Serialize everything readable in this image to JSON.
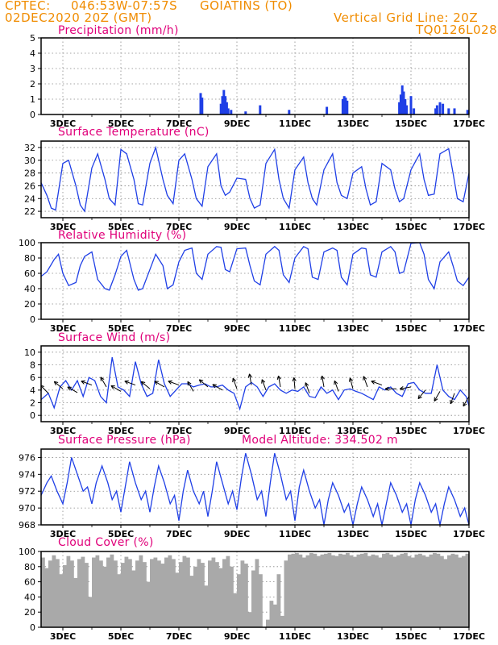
{
  "header": {
    "source": "CPTEC:",
    "coords": "046:53W-07:57S",
    "location": "GOIATINS (TO)",
    "datetime": "02DEC2020 20Z (GMT)",
    "grid_note": "Vertical Grid Line: 20Z",
    "model": "TQ0126L028"
  },
  "colors": {
    "header": "#f08c00",
    "title": "#e0007a",
    "line": "#1f3fe6",
    "cloud": "#a9a9a9"
  },
  "x_ticks": [
    "3DEC",
    "5DEC",
    "7DEC",
    "9DEC",
    "11DEC",
    "13DEC",
    "15DEC",
    "17DEC"
  ],
  "panels": {
    "precip": {
      "title": "Precipitation (mm/h)"
    },
    "temp": {
      "title": "Surface Temperature (nC)"
    },
    "rh": {
      "title": "Relative Humidity (%)"
    },
    "wind": {
      "title": "Surface Wind (m/s)"
    },
    "pressure": {
      "title": "Surface Pressure (hPa)",
      "extra": "Model Altitude: 334.502 m"
    },
    "cloud": {
      "title": "Cloud Cover (%)"
    }
  },
  "chart_data": [
    {
      "id": "precip",
      "type": "bar",
      "title": "Precipitation (mm/h)",
      "xrange": [
        2.25,
        17.0
      ],
      "ylim": [
        0,
        5
      ],
      "yticks": [
        0,
        1,
        2,
        3,
        4,
        5
      ],
      "bars": [
        [
          7.75,
          1.4
        ],
        [
          7.8,
          1.1
        ],
        [
          8.45,
          0.7
        ],
        [
          8.5,
          1.2
        ],
        [
          8.55,
          1.6
        ],
        [
          8.6,
          1.2
        ],
        [
          8.65,
          0.8
        ],
        [
          8.7,
          0.4
        ],
        [
          8.8,
          0.3
        ],
        [
          9.3,
          0.2
        ],
        [
          9.8,
          0.6
        ],
        [
          10.8,
          0.3
        ],
        [
          12.1,
          0.5
        ],
        [
          12.65,
          1.0
        ],
        [
          12.7,
          1.2
        ],
        [
          12.75,
          1.1
        ],
        [
          12.8,
          0.9
        ],
        [
          14.6,
          0.8
        ],
        [
          14.65,
          1.3
        ],
        [
          14.7,
          1.9
        ],
        [
          14.75,
          1.5
        ],
        [
          14.8,
          1.0
        ],
        [
          14.85,
          0.6
        ],
        [
          15.0,
          1.2
        ],
        [
          15.1,
          0.4
        ],
        [
          15.85,
          0.4
        ],
        [
          15.9,
          0.6
        ],
        [
          16.0,
          0.8
        ],
        [
          16.1,
          0.7
        ],
        [
          16.3,
          0.4
        ],
        [
          16.5,
          0.4
        ],
        [
          16.95,
          0.3
        ]
      ]
    },
    {
      "id": "temp",
      "type": "line",
      "title": "Surface Temperature (nC)",
      "xrange": [
        2.25,
        17.0
      ],
      "ylim": [
        21,
        33
      ],
      "yticks": [
        22,
        24,
        26,
        28,
        30,
        32
      ],
      "x": [
        2.25,
        2.45,
        2.6,
        2.75,
        3.0,
        3.2,
        3.45,
        3.6,
        3.75,
        4.0,
        4.2,
        4.45,
        4.6,
        4.8,
        5.0,
        5.2,
        5.45,
        5.6,
        5.75,
        6.0,
        6.2,
        6.45,
        6.6,
        6.8,
        7.0,
        7.2,
        7.45,
        7.6,
        7.8,
        8.0,
        8.3,
        8.45,
        8.6,
        8.75,
        9.0,
        9.3,
        9.45,
        9.6,
        9.8,
        10.0,
        10.3,
        10.45,
        10.6,
        10.8,
        11.0,
        11.3,
        11.45,
        11.6,
        11.75,
        12.0,
        12.3,
        12.45,
        12.6,
        12.8,
        13.0,
        13.3,
        13.45,
        13.6,
        13.8,
        14.0,
        14.3,
        14.45,
        14.6,
        14.75,
        15.0,
        15.3,
        15.45,
        15.6,
        15.8,
        16.0,
        16.3,
        16.45,
        16.6,
        16.8,
        17.0
      ],
      "y": [
        26.5,
        24.5,
        22.5,
        22.2,
        29.5,
        30,
        26,
        23,
        22,
        28.8,
        31,
        27,
        24,
        23,
        31.7,
        31,
        27,
        23.2,
        23,
        29.5,
        32,
        27,
        24.5,
        23.2,
        30,
        31,
        27,
        24,
        22.8,
        29,
        31,
        26,
        24.5,
        25,
        27.2,
        27,
        24,
        22.5,
        23,
        29.5,
        31.7,
        27,
        24,
        22.5,
        28.5,
        30.5,
        26.5,
        24,
        23,
        28.5,
        31,
        26.5,
        24.5,
        24,
        28,
        29,
        25.5,
        23,
        23.5,
        29.5,
        28.5,
        25.5,
        23.5,
        24,
        28.5,
        31,
        27,
        24.5,
        24.7,
        31,
        31.8,
        28,
        24,
        23.5,
        28
      ]
    },
    {
      "id": "rh",
      "type": "line",
      "title": "Relative Humidity (%)",
      "xrange": [
        2.25,
        17.0
      ],
      "ylim": [
        0,
        100
      ],
      "yticks": [
        0,
        20,
        40,
        60,
        80,
        100
      ],
      "x": [
        2.25,
        2.45,
        2.7,
        2.85,
        3.0,
        3.2,
        3.45,
        3.6,
        3.75,
        4.0,
        4.2,
        4.45,
        4.6,
        4.8,
        5.0,
        5.2,
        5.45,
        5.6,
        5.75,
        6.0,
        6.2,
        6.45,
        6.6,
        6.8,
        7.0,
        7.2,
        7.45,
        7.6,
        7.8,
        8.0,
        8.3,
        8.45,
        8.6,
        8.75,
        9.0,
        9.3,
        9.45,
        9.6,
        9.8,
        10.0,
        10.3,
        10.45,
        10.6,
        10.8,
        11.0,
        11.3,
        11.45,
        11.6,
        11.8,
        12.0,
        12.3,
        12.45,
        12.6,
        12.8,
        13.0,
        13.3,
        13.45,
        13.6,
        13.8,
        14.0,
        14.3,
        14.45,
        14.6,
        14.75,
        15.0,
        15.3,
        15.45,
        15.6,
        15.8,
        16.0,
        16.3,
        16.45,
        16.6,
        16.8,
        17.0
      ],
      "y": [
        56,
        62,
        78,
        85,
        60,
        44,
        48,
        70,
        82,
        88,
        52,
        40,
        38,
        58,
        82,
        90,
        52,
        38,
        40,
        65,
        85,
        70,
        40,
        45,
        75,
        90,
        93,
        60,
        52,
        85,
        95,
        94,
        65,
        62,
        92,
        93,
        70,
        50,
        45,
        85,
        95,
        90,
        58,
        48,
        80,
        95,
        92,
        55,
        52,
        88,
        93,
        90,
        55,
        45,
        85,
        93,
        92,
        58,
        55,
        88,
        95,
        88,
        60,
        62,
        99,
        100,
        85,
        52,
        40,
        75,
        88,
        70,
        50,
        44,
        55
      ]
    },
    {
      "id": "wind",
      "type": "line",
      "title": "Surface Wind (m/s)",
      "xrange": [
        2.25,
        17.0
      ],
      "ylim": [
        -1,
        11
      ],
      "yticks": [
        0,
        2,
        4,
        6,
        8,
        10
      ],
      "x": [
        2.25,
        2.5,
        2.7,
        2.9,
        3.1,
        3.3,
        3.5,
        3.7,
        3.9,
        4.1,
        4.3,
        4.5,
        4.7,
        4.9,
        5.1,
        5.3,
        5.5,
        5.7,
        5.9,
        6.1,
        6.3,
        6.5,
        6.7,
        6.9,
        7.1,
        7.3,
        7.5,
        7.7,
        7.9,
        8.1,
        8.3,
        8.5,
        8.7,
        8.9,
        9.1,
        9.3,
        9.5,
        9.7,
        9.9,
        10.1,
        10.3,
        10.5,
        10.7,
        10.9,
        11.1,
        11.3,
        11.5,
        11.7,
        11.9,
        12.1,
        12.3,
        12.5,
        12.7,
        12.9,
        13.1,
        13.3,
        13.5,
        13.7,
        13.9,
        14.1,
        14.3,
        14.5,
        14.7,
        14.9,
        15.1,
        15.3,
        15.5,
        15.7,
        15.9,
        16.1,
        16.3,
        16.5,
        16.7,
        16.9,
        17.0
      ],
      "y": [
        2.5,
        3.5,
        1.2,
        4.5,
        5.5,
        4,
        5.5,
        3,
        6,
        5.5,
        3,
        2,
        9.2,
        4.5,
        4,
        3,
        8.5,
        5,
        3,
        3.5,
        8.8,
        5,
        3,
        4,
        5,
        5,
        4.5,
        4.8,
        5,
        4.5,
        4.5,
        4.8,
        4,
        3.5,
        1,
        4.5,
        5.2,
        4.5,
        3,
        4.5,
        5,
        4,
        3.5,
        4,
        3.8,
        4.5,
        3,
        2.8,
        4.5,
        3.5,
        4,
        2.5,
        4,
        4.2,
        3.8,
        3.5,
        3,
        2.5,
        4.5,
        4,
        4.5,
        3.5,
        3,
        5,
        5.2,
        4,
        3.5,
        3.5,
        8,
        4,
        3,
        2.5,
        4,
        3,
        1.5
      ],
      "arrows": [
        [
          2.5,
          3.5,
          225
        ],
        [
          3.0,
          4.2,
          230
        ],
        [
          3.5,
          3.6,
          240
        ],
        [
          4.0,
          4.8,
          250
        ],
        [
          4.5,
          4.5,
          210
        ],
        [
          5.0,
          3.8,
          240
        ],
        [
          5.5,
          4.8,
          250
        ],
        [
          6.0,
          4.2,
          230
        ],
        [
          6.5,
          4.5,
          240
        ],
        [
          7.0,
          4.8,
          250
        ],
        [
          7.5,
          3.8,
          210
        ],
        [
          8.0,
          4.5,
          230
        ],
        [
          8.5,
          4.0,
          240
        ],
        [
          9.0,
          4.2,
          200
        ],
        [
          9.5,
          4.8,
          190
        ],
        [
          10.0,
          4.0,
          200
        ],
        [
          10.5,
          4.5,
          190
        ],
        [
          11.0,
          4.2,
          185
        ],
        [
          11.5,
          3.5,
          200
        ],
        [
          12.0,
          4.5,
          190
        ],
        [
          12.5,
          3.8,
          200
        ],
        [
          13.0,
          4.2,
          195
        ],
        [
          13.5,
          4.5,
          200
        ],
        [
          14.0,
          4.8,
          250
        ],
        [
          14.5,
          4.2,
          270
        ],
        [
          15.0,
          4.5,
          280
        ],
        [
          15.5,
          4.0,
          320
        ],
        [
          16.0,
          3.8,
          330
        ],
        [
          16.5,
          3.5,
          340
        ],
        [
          17.0,
          3.0,
          330
        ]
      ]
    },
    {
      "id": "pressure",
      "type": "line",
      "title": "Surface Pressure (hPa)",
      "xrange": [
        2.25,
        17.0
      ],
      "ylim": [
        968,
        977
      ],
      "yticks": [
        968,
        970,
        972,
        974,
        976
      ],
      "x": [
        2.25,
        2.45,
        2.6,
        2.8,
        3.0,
        3.15,
        3.3,
        3.5,
        3.7,
        3.85,
        4.0,
        4.15,
        4.35,
        4.55,
        4.7,
        4.85,
        5.0,
        5.15,
        5.3,
        5.5,
        5.7,
        5.85,
        6.0,
        6.15,
        6.3,
        6.5,
        6.7,
        6.85,
        7.0,
        7.15,
        7.3,
        7.5,
        7.7,
        7.85,
        8.0,
        8.15,
        8.3,
        8.5,
        8.7,
        8.85,
        9.0,
        9.15,
        9.3,
        9.5,
        9.7,
        9.85,
        10.0,
        10.15,
        10.3,
        10.5,
        10.7,
        10.85,
        11.0,
        11.15,
        11.3,
        11.5,
        11.7,
        11.85,
        12.0,
        12.15,
        12.3,
        12.5,
        12.7,
        12.85,
        13.0,
        13.15,
        13.3,
        13.5,
        13.7,
        13.85,
        14.0,
        14.15,
        14.3,
        14.5,
        14.7,
        14.85,
        15.0,
        15.15,
        15.3,
        15.5,
        15.7,
        15.85,
        16.0,
        16.15,
        16.3,
        16.5,
        16.7,
        16.85,
        17.0
      ],
      "y": [
        971.5,
        973,
        973.8,
        972,
        970.5,
        973,
        976,
        974,
        972,
        972.5,
        970.5,
        973,
        975,
        973,
        971,
        972,
        969.5,
        972.5,
        975.5,
        973,
        971,
        972,
        969.5,
        972.5,
        975,
        973,
        970.5,
        971.5,
        968.5,
        972,
        974.5,
        972,
        970.5,
        972,
        969,
        972,
        975.5,
        973,
        970.5,
        972,
        969.8,
        973.5,
        976.5,
        974,
        971,
        972,
        969,
        973,
        976.5,
        974,
        971,
        972,
        968.5,
        972.5,
        974.5,
        972,
        970,
        971,
        968,
        971,
        973,
        971.5,
        969.5,
        970.5,
        968,
        970.5,
        972.5,
        971,
        969,
        970.5,
        968,
        970.5,
        973,
        971.5,
        969.5,
        970.5,
        968,
        971,
        973,
        971.5,
        969.5,
        970.5,
        968,
        970.5,
        972.5,
        971,
        969,
        970,
        968
      ]
    },
    {
      "id": "cloud",
      "type": "bar",
      "title": "Cloud Cover (%)",
      "xrange": [
        2.25,
        17.0
      ],
      "ylim": [
        0,
        100
      ],
      "yticks": [
        0,
        20,
        40,
        60,
        80,
        100
      ],
      "bar_width_days": 0.0417,
      "x_start": 2.25,
      "x_step": 0.125,
      "values": [
        92,
        78,
        88,
        95,
        90,
        70,
        82,
        94,
        88,
        65,
        90,
        93,
        85,
        40,
        92,
        95,
        88,
        80,
        92,
        96,
        88,
        70,
        85,
        93,
        90,
        75,
        88,
        95,
        86,
        60,
        90,
        92,
        88,
        84,
        92,
        95,
        90,
        72,
        86,
        94,
        92,
        68,
        80,
        90,
        85,
        55,
        88,
        92,
        86,
        78,
        90,
        94,
        80,
        45,
        70,
        88,
        84,
        20,
        75,
        90,
        70,
        0,
        10,
        35,
        30,
        70,
        15,
        88,
        96,
        97,
        98,
        96,
        92,
        95,
        98,
        97,
        94,
        96,
        97,
        98,
        95,
        94,
        97,
        96,
        98,
        95,
        93,
        96,
        97,
        98,
        94,
        96,
        95,
        92,
        97,
        98,
        96,
        93,
        95,
        97,
        98,
        94,
        92,
        96,
        97,
        95,
        93,
        96,
        98,
        97,
        94,
        90,
        95,
        97,
        96,
        92,
        94,
        97,
        98,
        95,
        93,
        96,
        97,
        94,
        92,
        95,
        97,
        96,
        93,
        95,
        98
      ]
    }
  ]
}
